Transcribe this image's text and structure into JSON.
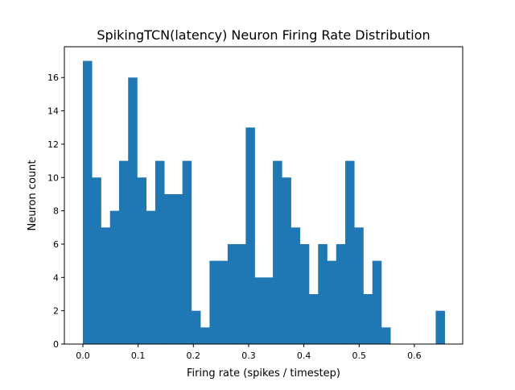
{
  "chart_data": {
    "type": "bar",
    "subtype": "histogram",
    "title": "SpikingTCN(latency) Neuron Firing Rate Distribution",
    "xlabel": "Firing rate (spikes / timestep)",
    "ylabel": "Neuron count",
    "bin_range": [
      0.0,
      0.655
    ],
    "bins": 40,
    "values": [
      17,
      10,
      7,
      8,
      11,
      16,
      10,
      8,
      11,
      9,
      9,
      11,
      2,
      1,
      5,
      5,
      6,
      6,
      13,
      4,
      4,
      11,
      10,
      7,
      6,
      3,
      6,
      5,
      6,
      11,
      7,
      3,
      5,
      1,
      0,
      0,
      0,
      0,
      0,
      2
    ],
    "xlim": [
      -0.0335,
      0.6875
    ],
    "ylim": [
      0,
      17.85
    ],
    "xticks": [
      "0.0",
      "0.1",
      "0.2",
      "0.3",
      "0.4",
      "0.5",
      "0.6"
    ],
    "yticks": [
      "0",
      "2",
      "4",
      "6",
      "8",
      "10",
      "12",
      "14",
      "16"
    ],
    "grid": false,
    "color": "#1f77b4"
  }
}
